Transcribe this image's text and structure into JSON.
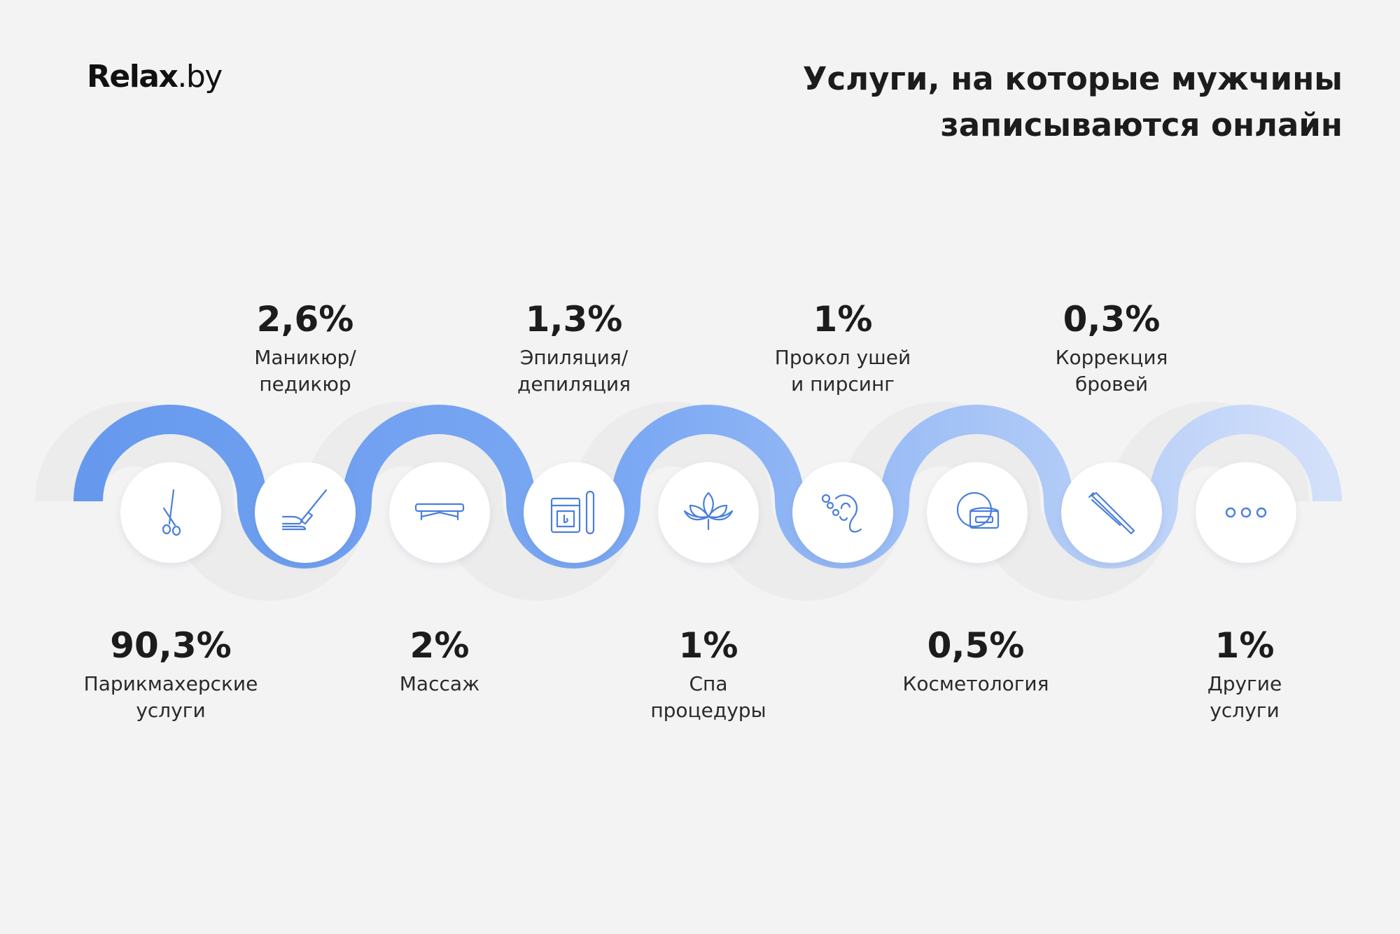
{
  "brand": {
    "name": "Relax",
    "suffix": ".by"
  },
  "header": {
    "title_line1": "Услуги, на которые мужчины",
    "title_line2": "записываются онлайн"
  },
  "colors": {
    "wave_start": "#6699ee",
    "wave_end": "#d3e0fa",
    "icon_stroke": "#4a7fdc",
    "background": "#f3f3f3"
  },
  "services": [
    {
      "percent": "90,3%",
      "name_line1": "Парикмахерские",
      "name_line2": "услуги",
      "icon": "scissors-icon"
    },
    {
      "percent": "2,6%",
      "name_line1": "Маникюр/",
      "name_line2": "педикюр",
      "icon": "nail-file-icon"
    },
    {
      "percent": "2%",
      "name_line1": "Массаж",
      "name_line2": "",
      "icon": "massage-table-icon"
    },
    {
      "percent": "1,3%",
      "name_line1": "Эпиляция/",
      "name_line2": "депиляция",
      "icon": "wax-jar-icon"
    },
    {
      "percent": "1%",
      "name_line1": "Спа",
      "name_line2": "процедуры",
      "icon": "lotus-icon"
    },
    {
      "percent": "1%",
      "name_line1": "Прокол ушей",
      "name_line2": "и пирсинг",
      "icon": "ear-piercing-icon"
    },
    {
      "percent": "0,5%",
      "name_line1": "Косметология",
      "name_line2": "",
      "icon": "cream-jar-icon"
    },
    {
      "percent": "0,3%",
      "name_line1": "Коррекция",
      "name_line2": "бровей",
      "icon": "tweezers-icon"
    },
    {
      "percent": "1%",
      "name_line1": "Другие",
      "name_line2": "услуги",
      "icon": "more-dots-icon"
    }
  ]
}
